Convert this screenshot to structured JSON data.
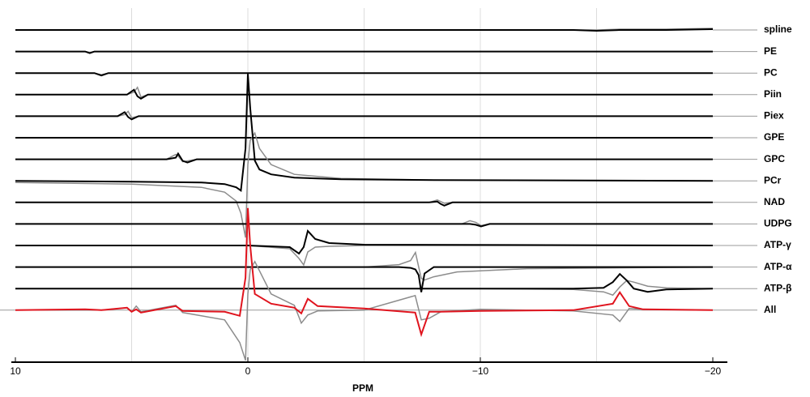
{
  "chart_data": {
    "type": "line",
    "xlabel": "PPM",
    "xlim": [
      10,
      -20
    ],
    "xticks": [
      10,
      0,
      {
        "value": -10,
        "label": "−10"
      },
      {
        "value": -20,
        "label": "−20"
      }
    ],
    "xgrid": [
      5,
      0,
      -5,
      -10,
      -15
    ],
    "colors": {
      "fit": "#000000",
      "component": "#8c8c8c",
      "sum": "#e0141e"
    },
    "rows": [
      {
        "name": "spline",
        "x": [
          10,
          5,
          0,
          -5,
          -10,
          -14,
          -15,
          -16,
          -18,
          -20
        ],
        "values": [
          0,
          0,
          0,
          0,
          0,
          0,
          -1,
          0,
          0,
          1
        ],
        "gray": [
          0,
          0,
          0,
          0,
          0,
          0,
          0,
          1,
          1,
          2
        ]
      },
      {
        "name": "PE",
        "x": [
          10,
          7.0,
          6.8,
          6.6,
          -20
        ],
        "values": [
          0,
          0,
          -2,
          0,
          0
        ],
        "gray": [
          0,
          0,
          -1,
          0,
          0
        ]
      },
      {
        "name": "PC",
        "x": [
          10,
          6.6,
          6.3,
          6.0,
          -20
        ],
        "values": [
          0,
          0,
          -3,
          0,
          0
        ],
        "gray": [
          0,
          0,
          -2,
          0,
          0
        ]
      },
      {
        "name": "Piin",
        "x": [
          10,
          5.2,
          4.9,
          4.75,
          4.6,
          4.3,
          -20
        ],
        "values": [
          0,
          0,
          6,
          -2,
          -5,
          0,
          0
        ],
        "gray": [
          0,
          0,
          3,
          9,
          -3,
          0,
          0
        ]
      },
      {
        "name": "Piex",
        "x": [
          10,
          5.6,
          5.3,
          5.15,
          5.0,
          4.7,
          -20
        ],
        "values": [
          0,
          0,
          5,
          -1,
          -4,
          0,
          0
        ],
        "gray": [
          0,
          0,
          2,
          6,
          -2,
          0,
          0
        ]
      },
      {
        "name": "GPE",
        "x": [
          10,
          -20
        ],
        "values": [
          0,
          0
        ],
        "gray": [
          0,
          0
        ]
      },
      {
        "name": "GPC",
        "x": [
          10,
          3.5,
          3.1,
          3.0,
          2.8,
          2.6,
          2.2,
          -20
        ],
        "values": [
          0,
          0,
          2,
          7,
          -2,
          -4,
          0,
          0
        ],
        "gray": [
          0,
          0,
          6,
          4,
          -3,
          -2,
          0,
          0
        ]
      },
      {
        "name": "PCr",
        "x": [
          10,
          5,
          2,
          1,
          0.5,
          0.3,
          0.1,
          0,
          -0.1,
          -0.3,
          -0.5,
          -1,
          -2,
          -4,
          -8,
          -20
        ],
        "values": [
          0,
          -1,
          -2,
          -4,
          -8,
          -12,
          40,
          132,
          90,
          25,
          14,
          8,
          4,
          2,
          1,
          0
        ],
        "gray": [
          -2,
          -4,
          -8,
          -14,
          -25,
          -40,
          -70,
          20,
          50,
          59,
          40,
          20,
          8,
          3,
          1,
          0
        ]
      },
      {
        "name": "NAD",
        "x": [
          10,
          -7.8,
          -8.15,
          -8.3,
          -8.45,
          -8.8,
          -20
        ],
        "values": [
          0,
          0,
          1,
          -2,
          -4,
          0,
          0
        ],
        "gray": [
          0,
          0,
          3,
          1,
          -1,
          0,
          0
        ]
      },
      {
        "name": "UDPG",
        "x": [
          10,
          -9.2,
          -9.55,
          -9.8,
          -10.03,
          -10.4,
          -20
        ],
        "values": [
          0,
          0,
          0,
          -1,
          -3,
          0,
          0
        ],
        "gray": [
          0,
          0,
          4,
          2,
          -2,
          0,
          0
        ]
      },
      {
        "name": "ATP-γ",
        "x": [
          10,
          0,
          -1.8,
          -2.2,
          -2.4,
          -2.58,
          -2.9,
          -3.5,
          -5,
          -20
        ],
        "values": [
          0,
          0,
          -2,
          -10,
          -2,
          18,
          8,
          3,
          1,
          0
        ],
        "gray": [
          0,
          0,
          -4,
          -16,
          -24,
          -8,
          -2,
          -1,
          0,
          0
        ]
      },
      {
        "name": "ATP-α",
        "x": [
          10,
          0,
          -5,
          -6.5,
          -7,
          -7.21,
          -7.35,
          -7.46,
          -7.6,
          -8,
          -9,
          -12,
          -20
        ],
        "values": [
          0,
          0,
          0,
          0,
          -1,
          -3,
          -10,
          -31,
          -8,
          0,
          0,
          0,
          0
        ],
        "gray": [
          0,
          0,
          0,
          3,
          8,
          18,
          0,
          -14,
          -16,
          -12,
          -6,
          -2,
          0
        ]
      },
      {
        "name": "ATP-β",
        "x": [
          10,
          0,
          -10,
          -14,
          -15.3,
          -15.7,
          -16,
          -16.3,
          -16.6,
          -17.2,
          -18,
          -20
        ],
        "values": [
          0,
          0,
          0,
          0,
          1,
          8,
          18,
          10,
          0,
          -4,
          -1,
          0
        ],
        "gray": [
          0,
          0,
          0,
          -1,
          -4,
          -8,
          2,
          10,
          8,
          3,
          1,
          0
        ]
      },
      {
        "name": "All",
        "sum": true,
        "x": [
          10,
          7,
          6.3,
          5.2,
          5.0,
          4.8,
          4.6,
          3.1,
          2.8,
          1,
          0.35,
          0.1,
          0,
          -0.1,
          -0.3,
          -1,
          -2,
          -2.3,
          -2.58,
          -3,
          -5,
          -7.2,
          -7.46,
          -7.8,
          -8.3,
          -10,
          -14,
          -15.7,
          -16,
          -16.4,
          -17,
          -20
        ],
        "values": [
          0,
          1,
          0,
          3,
          -2,
          1,
          -3,
          5,
          -1,
          -2,
          -7,
          40,
          126,
          80,
          20,
          8,
          3,
          -4,
          14,
          5,
          2,
          -3,
          -30,
          -2,
          -2,
          -1,
          0,
          8,
          22,
          5,
          1,
          0
        ],
        "gray": [
          0,
          0,
          0,
          3,
          -2,
          5,
          -2,
          6,
          -3,
          -12,
          -40,
          -62,
          20,
          50,
          60,
          20,
          6,
          -16,
          -6,
          -1,
          0,
          18,
          -12,
          -10,
          -2,
          1,
          -1,
          -6,
          -14,
          2,
          1,
          0
        ]
      }
    ]
  }
}
